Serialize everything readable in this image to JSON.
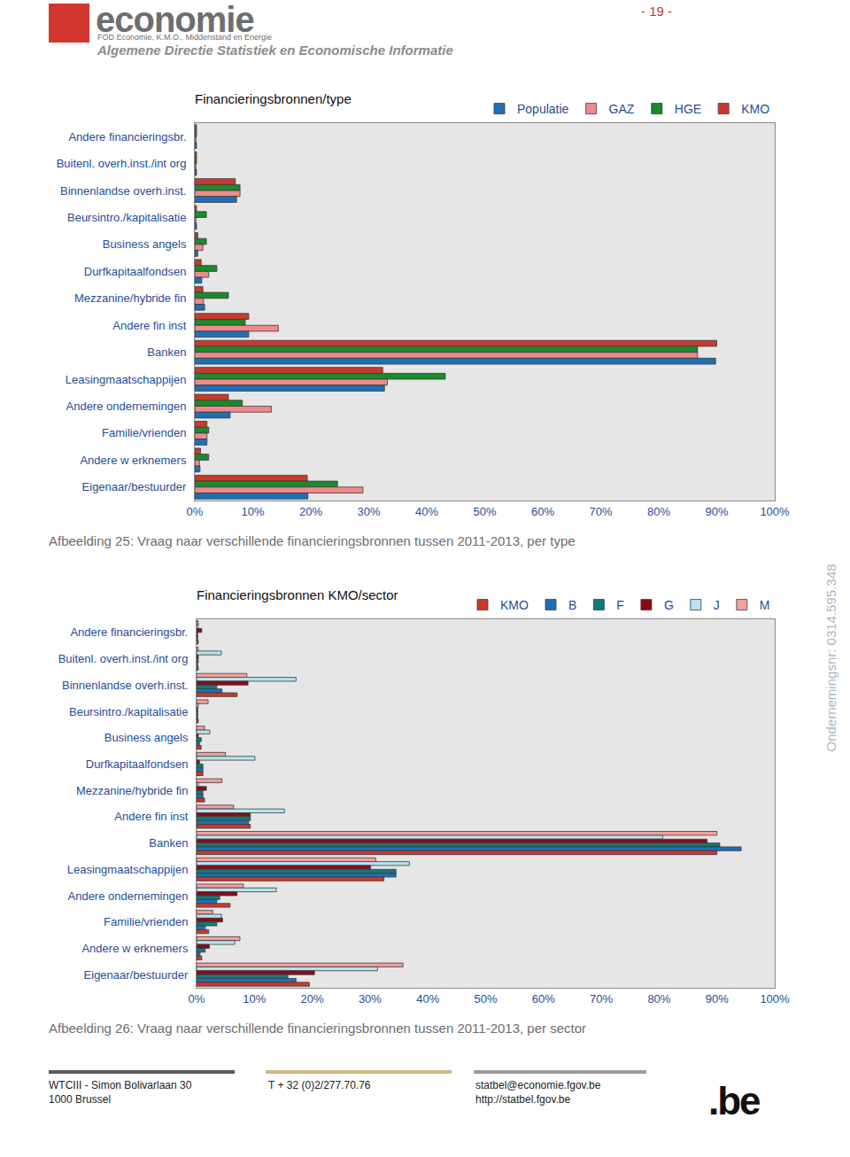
{
  "page": {
    "header": {
      "logo": "economie",
      "logo_subtitle": "FOD Economie, K.M.O., Middenstand en Energie",
      "department": "Algemene Directie Statistiek en Economische Informatie",
      "page_number": "- 19 -"
    },
    "side_note": "Ondernemingsnr: 0314.595.348",
    "captions": [
      "Afbeelding 25: Vraag naar verschillende financieringsbronnen tussen 2011-2013, per type",
      "Afbeelding 26: Vraag naar verschillende financieringsbronnen tussen 2011-2013, per sector"
    ],
    "footer": {
      "address_1": "WTCIII - Simon Bolivarlaan 30",
      "address_2": "1000 Brussel",
      "phone": "T + 32 (0)2/277.70.76",
      "email": "statbel@economie.fgov.be",
      "web": "http://statbel.fgov.be",
      "brand": ".be"
    }
  },
  "chart_data": [
    {
      "type": "bar",
      "orientation": "horizontal",
      "title": "Financieringsbronnen/type",
      "legend": "top-right",
      "grid": false,
      "categories": [
        "Andere financieringsbr.",
        "Buitenl. overh.inst./int org",
        "Binnenlandse overh.inst.",
        "Beursintro./kapitalisatie",
        "Business angels",
        "Durfkapitaalfondsen",
        "Mezzanine/hybride fin",
        "Andere fin inst",
        "Banken",
        "Leasingmaatschappijen",
        "Andere ondernemingen",
        "Familie/vrienden",
        "Andere w erknemers",
        "Eigenaar/bestuurder"
      ],
      "series": [
        {
          "name": "Populatie",
          "color": "#1f6fb5",
          "values": [
            0.3,
            0.3,
            7.2,
            0.3,
            0.5,
            1.2,
            1.7,
            9.3,
            89.8,
            32.7,
            6.1,
            2.1,
            0.9,
            19.5
          ]
        },
        {
          "name": "GAZ",
          "color": "#f08a8a",
          "values": [
            0.2,
            0.2,
            7.8,
            0.2,
            1.4,
            2.4,
            1.5,
            14.4,
            86.7,
            33.2,
            13.2,
            2.1,
            0.8,
            29.0
          ]
        },
        {
          "name": "HGE",
          "color": "#1a8a2a",
          "values": [
            0.3,
            0.3,
            7.8,
            2.0,
            2.0,
            3.8,
            5.8,
            8.7,
            86.7,
            43.2,
            8.2,
            2.4,
            2.4,
            24.6
          ]
        },
        {
          "name": "KMO",
          "color": "#c83a2e",
          "values": [
            0.3,
            0.3,
            7.0,
            0.3,
            0.5,
            1.1,
            1.4,
            9.3,
            90.0,
            32.4,
            5.8,
            2.1,
            1.0,
            19.4
          ]
        }
      ],
      "xlim": [
        0,
        100
      ],
      "xticks": [
        {
          "value": 0,
          "label": "0%"
        },
        {
          "value": 10,
          "label": "10%"
        },
        {
          "value": 20,
          "label": "20%"
        },
        {
          "value": 30,
          "label": "30%"
        },
        {
          "value": 40,
          "label": "40%"
        },
        {
          "value": 50,
          "label": "50%"
        },
        {
          "value": 60,
          "label": "60%"
        },
        {
          "value": 70,
          "label": "70%"
        },
        {
          "value": 80,
          "label": "80%"
        },
        {
          "value": 90,
          "label": "90%"
        },
        {
          "value": 100,
          "label": "100%"
        }
      ]
    },
    {
      "type": "bar",
      "orientation": "horizontal",
      "title": "Financieringsbronnen KMO/sector",
      "legend": "top-right",
      "grid": false,
      "categories": [
        "Andere financieringsbr.",
        "Buitenl. overh.inst./int org",
        "Binnenlandse overh.inst.",
        "Beursintro./kapitalisatie",
        "Business angels",
        "Durfkapitaalfondsen",
        "Mezzanine/hybride fin",
        "Andere fin inst",
        "Banken",
        "Leasingmaatschappijen",
        "Andere ondernemingen",
        "Familie/vrienden",
        "Andere w erknemers",
        "Eigenaar/bestuurder"
      ],
      "series": [
        {
          "name": "KMO",
          "color": "#c83a2e",
          "values": [
            0.3,
            0.3,
            7.0,
            0.3,
            0.8,
            1.1,
            1.4,
            9.3,
            90.0,
            32.4,
            5.8,
            2.1,
            0.9,
            19.5
          ]
        },
        {
          "name": "B",
          "color": "#1f6fb5",
          "values": [
            0.2,
            0.2,
            4.4,
            0.2,
            0.5,
            1.1,
            1.1,
            9.0,
            94.2,
            34.5,
            3.5,
            1.5,
            0.6,
            17.2
          ]
        },
        {
          "name": "F",
          "color": "#0f7a7a",
          "values": [
            0.2,
            0.3,
            3.5,
            0.2,
            0.8,
            1.1,
            1.1,
            9.3,
            90.5,
            34.5,
            4.0,
            3.5,
            1.5,
            15.8
          ]
        },
        {
          "name": "G",
          "color": "#8b0a1a",
          "values": [
            0.9,
            0.3,
            8.9,
            0.2,
            0.3,
            0.5,
            1.7,
            9.3,
            88.3,
            30.1,
            7.0,
            4.5,
            2.2,
            20.4
          ]
        },
        {
          "name": "J",
          "color": "#b7e4ee",
          "values": [
            0.3,
            4.3,
            17.2,
            0.3,
            2.3,
            10.1,
            0.3,
            15.2,
            80.6,
            36.8,
            13.8,
            4.3,
            6.6,
            31.3
          ]
        },
        {
          "name": "M",
          "color": "#f4a0a0",
          "values": [
            0.3,
            0.3,
            8.7,
            2.0,
            1.4,
            5.0,
            4.4,
            6.4,
            90.0,
            31.0,
            8.1,
            2.8,
            7.5,
            35.7
          ]
        }
      ],
      "xlim": [
        0,
        100
      ],
      "xticks": [
        {
          "value": 0,
          "label": "0%"
        },
        {
          "value": 10,
          "label": "10%"
        },
        {
          "value": 20,
          "label": "20%"
        },
        {
          "value": 30,
          "label": "30%"
        },
        {
          "value": 40,
          "label": "40%"
        },
        {
          "value": 50,
          "label": "50%"
        },
        {
          "value": 60,
          "label": "60%"
        },
        {
          "value": 70,
          "label": "70%"
        },
        {
          "value": 80,
          "label": "80%"
        },
        {
          "value": 90,
          "label": "90%"
        },
        {
          "value": 100,
          "label": "100%"
        }
      ]
    }
  ]
}
